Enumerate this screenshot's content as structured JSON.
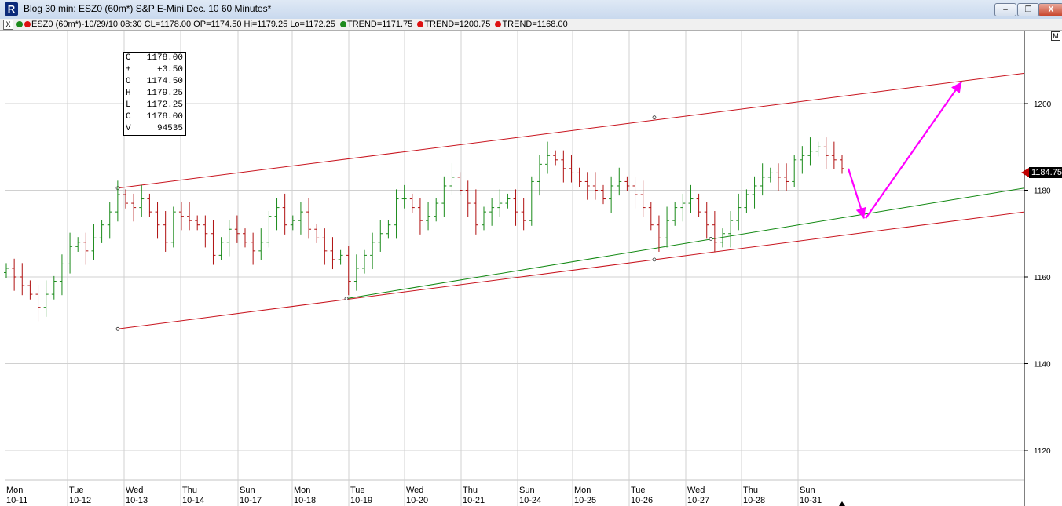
{
  "window": {
    "title": "Blog 30 min: ESZ0 (60m*) S&P E-Mini  Dec. 10 60 Minutes*",
    "app_icon": "R",
    "minimize_glyph": "–",
    "restore_glyph": "❐",
    "close_glyph": "X"
  },
  "infobar": {
    "close_glyph": "X",
    "symbol_text": "ESZ0 (60m*)-10/29/10 08:30 CL=1178.00 OP=1174.50 Hi=1179.25 Lo=1172.25",
    "trend1": "TREND=1171.75",
    "trend2": "TREND=1200.75",
    "trend3": "TREND=1168.00",
    "colors": {
      "green": "#1d8a1d",
      "red": "#d11"
    }
  },
  "m_button": "M",
  "ohlc": [
    {
      "k": "C",
      "v": "1178.00"
    },
    {
      "k": "±",
      "v": "+3.50"
    },
    {
      "k": "O",
      "v": "1174.50"
    },
    {
      "k": "H",
      "v": "1179.25"
    },
    {
      "k": "L",
      "v": "1172.25"
    },
    {
      "k": "C",
      "v": "1178.00"
    },
    {
      "k": "V",
      "v": "94535"
    }
  ],
  "price_marker": "1184.75",
  "chart_data": {
    "type": "ohlc-bar",
    "ylim": [
      1110,
      1216
    ],
    "y_ticks": [
      "1200",
      "1180",
      "1160",
      "1140",
      "1120"
    ],
    "days": [
      {
        "dow": "Mon",
        "date": "10-11"
      },
      {
        "dow": "Tue",
        "date": "10-12"
      },
      {
        "dow": "Wed",
        "date": "10-13"
      },
      {
        "dow": "Thu",
        "date": "10-14"
      },
      {
        "dow": "Sun",
        "date": "10-17"
      },
      {
        "dow": "Mon",
        "date": "10-18"
      },
      {
        "dow": "Tue",
        "date": "10-19"
      },
      {
        "dow": "Wed",
        "date": "10-20"
      },
      {
        "dow": "Thu",
        "date": "10-21"
      },
      {
        "dow": "Sun",
        "date": "10-24"
      },
      {
        "dow": "Mon",
        "date": "10-25"
      },
      {
        "dow": "Tue",
        "date": "10-26"
      },
      {
        "dow": "Wed",
        "date": "10-27"
      },
      {
        "dow": "Thu",
        "date": "10-28"
      },
      {
        "dow": "Sun",
        "date": "10-31"
      }
    ],
    "closes": [
      1162,
      1160,
      1158,
      1156,
      1153,
      1156,
      1159,
      1163,
      1167,
      1168,
      1166,
      1169,
      1172,
      1175,
      1179,
      1177,
      1176,
      1178,
      1175,
      1172,
      1168,
      1175,
      1174,
      1173,
      1172,
      1170,
      1165,
      1168,
      1171,
      1170,
      1168,
      1166,
      1168,
      1174,
      1176,
      1172,
      1173,
      1175,
      1171,
      1169,
      1166,
      1164,
      1165,
      1159,
      1162,
      1165,
      1168,
      1170,
      1172,
      1178,
      1178,
      1176,
      1173,
      1174,
      1177,
      1181,
      1183,
      1180,
      1177,
      1172,
      1175,
      1176,
      1177,
      1178,
      1175,
      1173,
      1182,
      1186,
      1188,
      1187,
      1185,
      1184,
      1182,
      1181,
      1180,
      1178,
      1181,
      1182,
      1181,
      1179,
      1176,
      1172,
      1169,
      1173,
      1176,
      1177,
      1178,
      1175,
      1172,
      1168,
      1170,
      1173,
      1176,
      1179,
      1181,
      1183,
      1184,
      1183,
      1182,
      1187,
      1188,
      1189,
      1190,
      1188,
      1187,
      1185
    ],
    "trendlines": [
      {
        "color": "#c8141e",
        "from": [
          "10-13 early",
          1180.5
        ],
        "to": [
          "11-01",
          1207
        ]
      },
      {
        "color": "#c8141e",
        "from": [
          "10-13 early",
          1148
        ],
        "to": [
          "11-01",
          1175
        ]
      },
      {
        "color": "#118811",
        "from": [
          "10-19 early",
          1155
        ],
        "to": [
          "11-01",
          1180.5
        ]
      }
    ],
    "arrows": {
      "color": "#ff00ff",
      "down": {
        "from": 1185,
        "to": 1173.5
      },
      "up": {
        "from": 1173.5,
        "to": 1205
      }
    }
  }
}
